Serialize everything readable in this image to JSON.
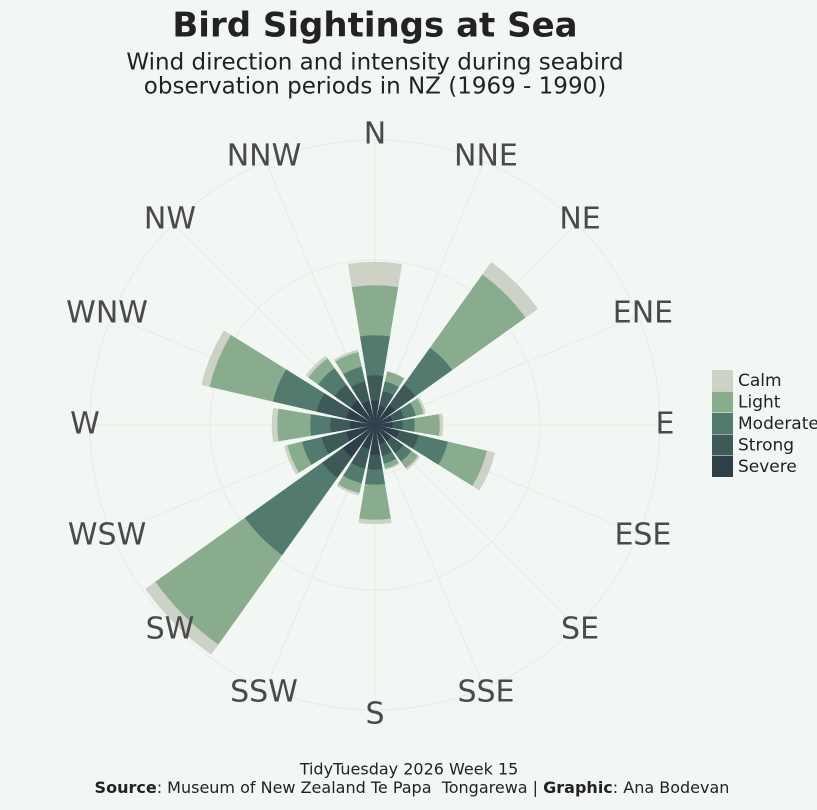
{
  "chart_data": {
    "type": "polar-stacked-bar",
    "title": "Bird Sightings at Sea",
    "subtitle": [
      "Wind direction and intensity during seabird",
      "observation periods in NZ (1969 - 1990)"
    ],
    "categories": [
      "N",
      "NNE",
      "NE",
      "ENE",
      "E",
      "ESE",
      "SE",
      "SSE",
      "S",
      "SSW",
      "SW",
      "WSW",
      "W",
      "WNW",
      "NW",
      "NNW"
    ],
    "series": [
      {
        "name": "Calm",
        "color": "#cdd1c6",
        "values": [
          23,
          0,
          15,
          2,
          3,
          8,
          2,
          1,
          4,
          2,
          12,
          3,
          5,
          8,
          3,
          2
        ]
      },
      {
        "name": "Light",
        "color": "#8aac8e",
        "values": [
          50,
          10,
          90,
          8,
          25,
          40,
          8,
          5,
          35,
          10,
          110,
          15,
          33,
          65,
          12,
          15
        ]
      },
      {
        "name": "Moderate",
        "color": "#527a6e",
        "values": [
          40,
          10,
          45,
          12,
          12,
          30,
          10,
          8,
          15,
          15,
          95,
          20,
          20,
          45,
          20,
          15
        ]
      },
      {
        "name": "Strong",
        "color": "#3d5a58",
        "values": [
          25,
          15,
          25,
          12,
          10,
          20,
          15,
          12,
          15,
          20,
          25,
          25,
          20,
          30,
          20,
          20
        ]
      },
      {
        "name": "Severe",
        "color": "#2f3f4a",
        "values": [
          25,
          20,
          25,
          18,
          18,
          25,
          20,
          20,
          30,
          25,
          40,
          30,
          25,
          30,
          30,
          25
        ]
      }
    ],
    "ylim": [
      0,
      300
    ],
    "caption": {
      "line1": "TidyTuesday 2026  Week 15",
      "source_label": "Source",
      "source": ": Museum of New Zealand Te Papa  Tongarewa | ",
      "graphic_label": "Graphic",
      "graphic": ": Ana Bodevan"
    }
  }
}
